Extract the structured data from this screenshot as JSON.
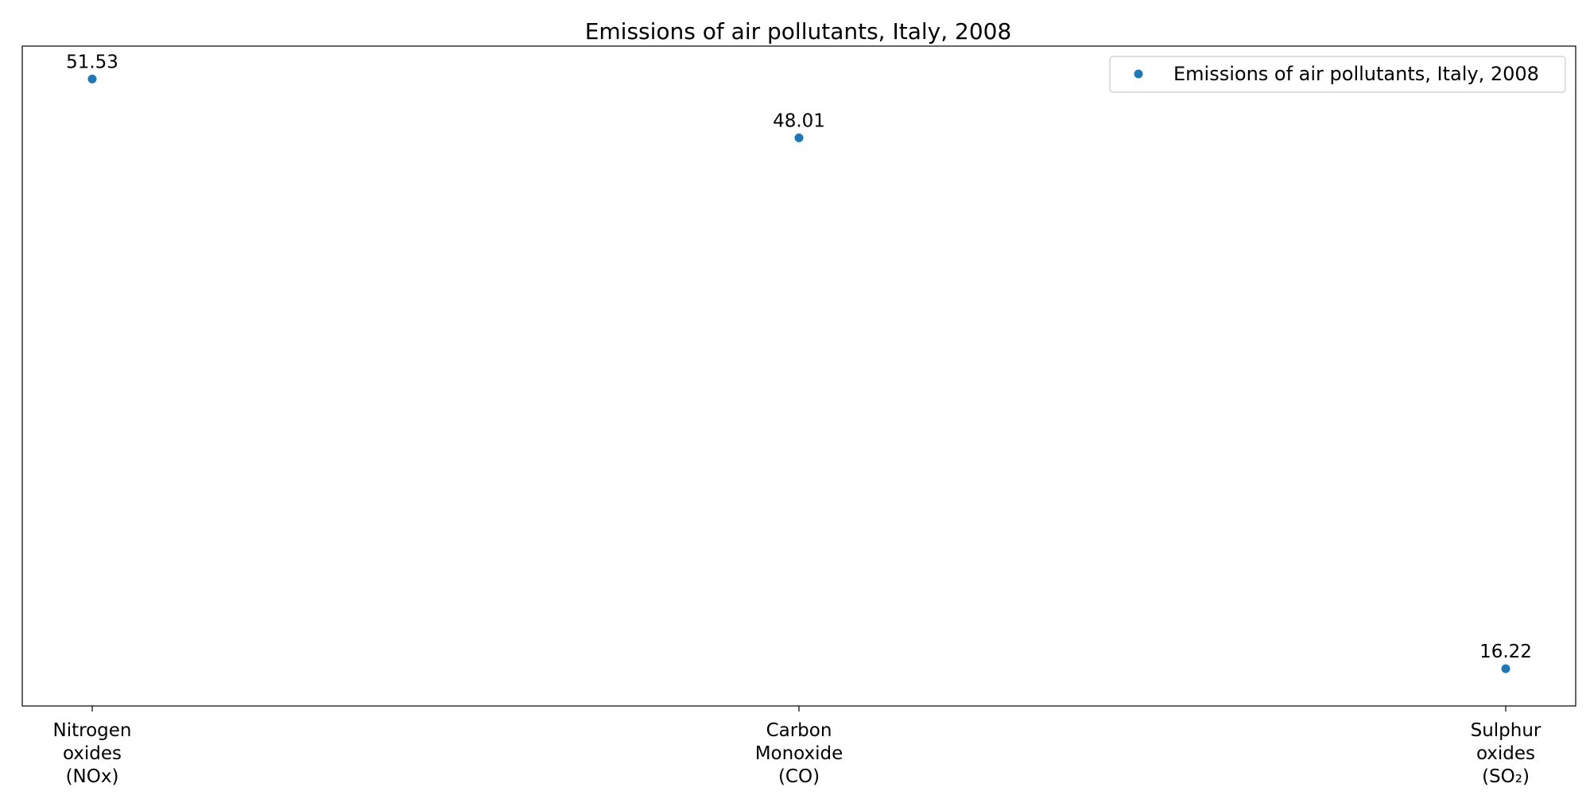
{
  "chart_data": {
    "type": "scatter",
    "title": "Emissions of air pollutants, Italy, 2008",
    "xlabel": "",
    "ylabel": "",
    "categories": [
      [
        "Nitrogen",
        "oxides",
        "(NOx)"
      ],
      [
        "Carbon",
        "Monoxide",
        "(CO)"
      ],
      [
        "Sulphur",
        "oxides",
        "(SO₂)"
      ]
    ],
    "series": [
      {
        "name": "Emissions of air pollutants, Italy, 2008",
        "values": [
          51.53,
          48.01,
          16.22
        ],
        "labels": [
          "51.53",
          "48.01",
          "16.22"
        ],
        "color": "#1f77b4"
      }
    ],
    "ylim": [
      13.99,
      53.5
    ],
    "grid": false,
    "legend": "top-right",
    "y_ticks_visible": false
  }
}
